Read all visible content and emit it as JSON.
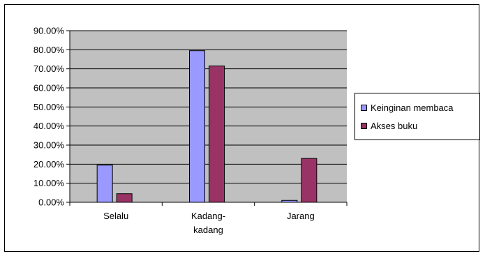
{
  "chart_data": {
    "type": "bar",
    "categories": [
      "Selalu",
      "Kadang-kadang",
      "Jarang"
    ],
    "category_lines": [
      [
        "Selalu"
      ],
      [
        "Kadang-",
        "kadang"
      ],
      [
        "Jarang"
      ]
    ],
    "series": [
      {
        "name": "Keinginan membaca",
        "values": [
          19.5,
          79.5,
          1.0
        ],
        "color": "#9999FF"
      },
      {
        "name": "Akses buku",
        "values": [
          4.5,
          71.5,
          23.0
        ],
        "color": "#993366"
      }
    ],
    "ylim": [
      0,
      90
    ],
    "yticks": [
      0,
      10,
      20,
      30,
      40,
      50,
      60,
      70,
      80,
      90
    ],
    "ytick_labels": [
      "0.00%",
      "10.00%",
      "20.00%",
      "30.00%",
      "40.00%",
      "50.00%",
      "60.00%",
      "70.00%",
      "80.00%",
      "90.00%"
    ],
    "grid": true,
    "legend_position": "right",
    "plot_background": "#C0C0C0",
    "title": "",
    "xlabel": "",
    "ylabel": ""
  }
}
